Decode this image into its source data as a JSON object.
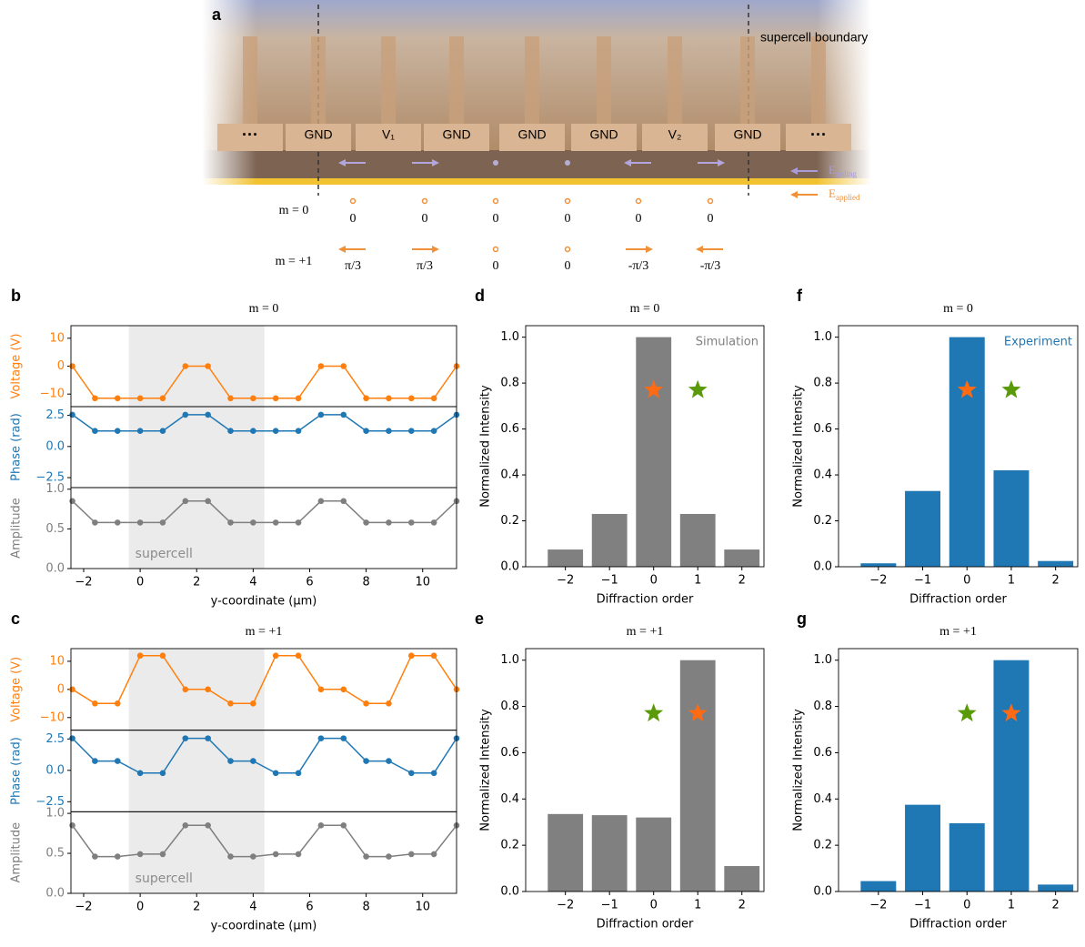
{
  "diagram": {
    "label": "a",
    "boundary_label": "supercell boundary",
    "electrodes": [
      "···",
      "GND",
      "V₁",
      "GND",
      "GND",
      "GND",
      "V₂",
      "GND",
      "···"
    ],
    "fields": [
      {
        "symbol": "E",
        "subscript": "poling",
        "color": "#a99bd6"
      },
      {
        "symbol": "E",
        "subscript": "applied",
        "color": "#f0913a"
      }
    ],
    "rows": [
      {
        "label": "m = 0",
        "phases": [
          "0",
          "0",
          "0",
          "0",
          "0",
          "0"
        ]
      },
      {
        "label": "m = +1",
        "phases": [
          "π/3",
          "π/3",
          "0",
          "0",
          "-π/3",
          "-π/3"
        ]
      }
    ]
  },
  "chart_data": [
    {
      "type": "line",
      "panel_label": "b",
      "title": "m = 0",
      "xlabel": "y-coordinate (μm)",
      "x": [
        -2.4,
        -1.6,
        -0.8,
        0,
        0.8,
        1.6,
        2.4,
        3.2,
        4.0,
        4.8,
        5.6,
        6.4,
        7.2,
        8.0,
        8.8,
        9.6,
        10.4,
        11.2
      ],
      "xlim": [
        -2.45,
        11.2
      ],
      "xticks": [
        {
          "value": -2,
          "label": "−2"
        },
        0,
        2,
        4,
        6,
        8,
        10
      ],
      "shade": {
        "range": [
          -0.4,
          4.4
        ],
        "label": "supercell",
        "color": "#ebebeb"
      },
      "subplots": [
        {
          "ylabel": "Voltage (V)",
          "ylim": [
            -14.5,
            14.5
          ],
          "yticks": [
            10,
            0,
            {
              "value": -10,
              "label": "−10"
            }
          ],
          "series": [
            {
              "color": "#ff7f0e",
              "values": [
                0,
                -11.5,
                -11.5,
                -11.5,
                -11.5,
                0,
                0,
                -11.5,
                -11.5,
                -11.5,
                -11.5,
                0,
                0,
                -11.5,
                -11.5,
                -11.5,
                -11.5,
                0
              ]
            }
          ]
        },
        {
          "ylabel": "Phase (rad)",
          "ylim": [
            -3.3,
            3.2
          ],
          "yticks": [
            2.5,
            {
              "value": 0,
              "label": "0.0"
            },
            {
              "value": -2.5,
              "label": "−2.5"
            }
          ],
          "series": [
            {
              "color": "#1f77b4",
              "values": [
                2.55,
                1.25,
                1.25,
                1.25,
                1.25,
                2.55,
                2.55,
                1.25,
                1.25,
                1.25,
                1.25,
                2.55,
                2.55,
                1.25,
                1.25,
                1.25,
                1.25,
                2.55
              ]
            }
          ]
        },
        {
          "ylabel": "Amplitude",
          "ylim": [
            0,
            1.02
          ],
          "yticks": [
            {
              "value": 0,
              "label": "0.0"
            },
            0.5,
            {
              "value": 1,
              "label": "1.0"
            }
          ],
          "series": [
            {
              "color": "#7f7f7f",
              "values": [
                0.85,
                0.58,
                0.58,
                0.58,
                0.58,
                0.85,
                0.85,
                0.58,
                0.58,
                0.58,
                0.58,
                0.85,
                0.85,
                0.58,
                0.58,
                0.58,
                0.58,
                0.85
              ]
            }
          ]
        }
      ]
    },
    {
      "type": "line",
      "panel_label": "c",
      "title": "m = +1",
      "xlabel": "y-coordinate (μm)",
      "x": [
        -2.4,
        -1.6,
        -0.8,
        0,
        0.8,
        1.6,
        2.4,
        3.2,
        4.0,
        4.8,
        5.6,
        6.4,
        7.2,
        8.0,
        8.8,
        9.6,
        10.4,
        11.2
      ],
      "xlim": [
        -2.45,
        11.2
      ],
      "xticks": [
        {
          "value": -2,
          "label": "−2"
        },
        0,
        2,
        4,
        6,
        8,
        10
      ],
      "shade": {
        "range": [
          -0.4,
          4.4
        ],
        "label": "supercell",
        "color": "#ebebeb"
      },
      "subplots": [
        {
          "ylabel": "Voltage (V)",
          "ylim": [
            -14.5,
            14.5
          ],
          "yticks": [
            10,
            0,
            {
              "value": -10,
              "label": "−10"
            }
          ],
          "series": [
            {
              "color": "#ff7f0e",
              "values": [
                0,
                -5,
                -5,
                12,
                12,
                0,
                0,
                -5,
                -5,
                12,
                12,
                0,
                0,
                -5,
                -5,
                12,
                12,
                0
              ]
            }
          ]
        },
        {
          "ylabel": "Phase (rad)",
          "ylim": [
            -3.3,
            3.2
          ],
          "yticks": [
            2.5,
            {
              "value": 0,
              "label": "0.0"
            },
            {
              "value": -2.5,
              "label": "−2.5"
            }
          ],
          "series": [
            {
              "color": "#1f77b4",
              "values": [
                2.55,
                0.74,
                0.74,
                -0.22,
                -0.22,
                2.55,
                2.55,
                0.74,
                0.74,
                -0.22,
                -0.22,
                2.55,
                2.55,
                0.74,
                0.74,
                -0.22,
                -0.22,
                2.55
              ]
            }
          ]
        },
        {
          "ylabel": "Amplitude",
          "ylim": [
            0,
            1.02
          ],
          "yticks": [
            {
              "value": 0,
              "label": "0.0"
            },
            0.5,
            {
              "value": 1,
              "label": "1.0"
            }
          ],
          "series": [
            {
              "color": "#7f7f7f",
              "values": [
                0.85,
                0.46,
                0.46,
                0.49,
                0.49,
                0.85,
                0.85,
                0.46,
                0.46,
                0.49,
                0.49,
                0.85,
                0.85,
                0.46,
                0.46,
                0.49,
                0.49,
                0.85
              ]
            }
          ]
        }
      ]
    },
    {
      "type": "bar",
      "panel_label": "d",
      "title": "m = 0",
      "xlabel": "Diffraction order",
      "ylabel": "Normalized Intensity",
      "x": [
        -2,
        -1,
        0,
        1,
        2
      ],
      "values": [
        0.075,
        0.23,
        1.0,
        0.23,
        0.075
      ],
      "color": "#808080",
      "annotation": "Simulation",
      "annotation_color": "#808080",
      "markers": [
        {
          "x": 0,
          "y": 0.77,
          "color": "#ff6a13"
        },
        {
          "x": 1,
          "y": 0.77,
          "color": "#5a9a08"
        }
      ],
      "xlim": [
        -2.9,
        2.5
      ],
      "xticks": [
        {
          "value": -2,
          "label": "−2"
        },
        {
          "value": -1,
          "label": "−1"
        },
        0,
        1,
        2
      ],
      "ylim": [
        0,
        1.05
      ],
      "yticks": [
        {
          "value": 0,
          "label": "0.0"
        },
        0.2,
        0.4,
        0.6,
        0.8,
        {
          "value": 1,
          "label": "1.0"
        }
      ]
    },
    {
      "type": "bar",
      "panel_label": "e",
      "title": "m = +1",
      "xlabel": "Diffraction order",
      "ylabel": "Normalized Intensity",
      "x": [
        -2,
        -1,
        0,
        1,
        2
      ],
      "values": [
        0.335,
        0.33,
        0.32,
        1.0,
        0.11
      ],
      "color": "#808080",
      "markers": [
        {
          "x": 0,
          "y": 0.77,
          "color": "#5a9a08"
        },
        {
          "x": 1,
          "y": 0.77,
          "color": "#ff6a13"
        }
      ],
      "xlim": [
        -2.9,
        2.5
      ],
      "xticks": [
        {
          "value": -2,
          "label": "−2"
        },
        {
          "value": -1,
          "label": "−1"
        },
        0,
        1,
        2
      ],
      "ylim": [
        0,
        1.05
      ],
      "yticks": [
        {
          "value": 0,
          "label": "0.0"
        },
        0.2,
        0.4,
        0.6,
        0.8,
        {
          "value": 1,
          "label": "1.0"
        }
      ]
    },
    {
      "type": "bar",
      "panel_label": "f",
      "title": "m = 0",
      "xlabel": "Diffraction order",
      "ylabel": "Normalized Intensity",
      "x": [
        -2,
        -1,
        0,
        1,
        2
      ],
      "values": [
        0.015,
        0.33,
        1.0,
        0.42,
        0.025
      ],
      "color": "#1f77b4",
      "annotation": "Experiment",
      "annotation_color": "#1f77b4",
      "markers": [
        {
          "x": 0,
          "y": 0.77,
          "color": "#ff6a13"
        },
        {
          "x": 1,
          "y": 0.77,
          "color": "#5a9a08"
        }
      ],
      "xlim": [
        -2.9,
        2.5
      ],
      "xticks": [
        {
          "value": -2,
          "label": "−2"
        },
        {
          "value": -1,
          "label": "−1"
        },
        0,
        1,
        2
      ],
      "ylim": [
        0,
        1.05
      ],
      "yticks": [
        {
          "value": 0,
          "label": "0.0"
        },
        0.2,
        0.4,
        0.6,
        0.8,
        {
          "value": 1,
          "label": "1.0"
        }
      ]
    },
    {
      "type": "bar",
      "panel_label": "g",
      "title": "m = +1",
      "xlabel": "Diffraction order",
      "ylabel": "Normalized Intensity",
      "x": [
        -2,
        -1,
        0,
        1,
        2
      ],
      "values": [
        0.045,
        0.375,
        0.295,
        1.0,
        0.03
      ],
      "color": "#1f77b4",
      "markers": [
        {
          "x": 0,
          "y": 0.77,
          "color": "#5a9a08"
        },
        {
          "x": 1,
          "y": 0.77,
          "color": "#ff6a13"
        }
      ],
      "xlim": [
        -2.9,
        2.5
      ],
      "xticks": [
        {
          "value": -2,
          "label": "−2"
        },
        {
          "value": -1,
          "label": "−1"
        },
        0,
        1,
        2
      ],
      "ylim": [
        0,
        1.05
      ],
      "yticks": [
        {
          "value": 0,
          "label": "0.0"
        },
        0.2,
        0.4,
        0.6,
        0.8,
        {
          "value": 1,
          "label": "1.0"
        }
      ]
    }
  ]
}
